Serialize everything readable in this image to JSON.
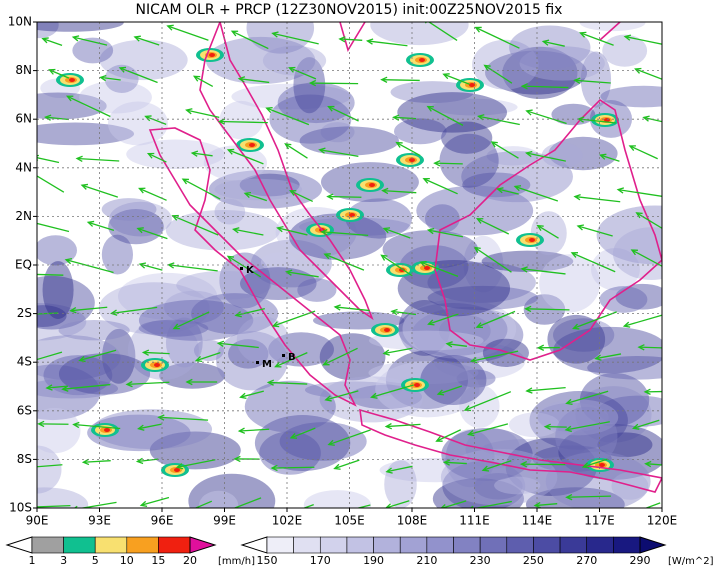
{
  "map": {
    "title": "NICAM OLR + PRCP (12Z30NOV2015) init:00Z25NOV2015 fix",
    "x_labels": [
      "90E",
      "93E",
      "96E",
      "99E",
      "102E",
      "105E",
      "108E",
      "111E",
      "114E",
      "117E",
      "120E"
    ],
    "y_labels": [
      "10N",
      "8N",
      "6N",
      "4N",
      "2N",
      "EQ",
      "2S",
      "4S",
      "6S",
      "8S",
      "10S"
    ],
    "stations": [
      "K",
      "M",
      "B"
    ]
  },
  "precip_scale": {
    "levels": [
      1,
      3,
      5,
      10,
      15,
      20
    ],
    "colors": [
      "#ffffff",
      "#a0a0a0",
      "#10c090",
      "#f8e070",
      "#f8a020",
      "#f02010",
      "#e0109c"
    ],
    "unit": "[mm/h]"
  },
  "olr_scale": {
    "levels": [
      150,
      170,
      190,
      210,
      230,
      250,
      270,
      290
    ],
    "colors": [
      "#ffffff",
      "#eeeef8",
      "#e0e0f2",
      "#d2d2ec",
      "#c2c2e4",
      "#b2b2dc",
      "#a2a2d4",
      "#9292cc",
      "#8282c2",
      "#7070b8",
      "#5e5eae",
      "#4c4ca4",
      "#3a3a98",
      "#28288c",
      "#181880",
      "#0c0c70"
    ],
    "unit": "[W/m^2]"
  }
}
